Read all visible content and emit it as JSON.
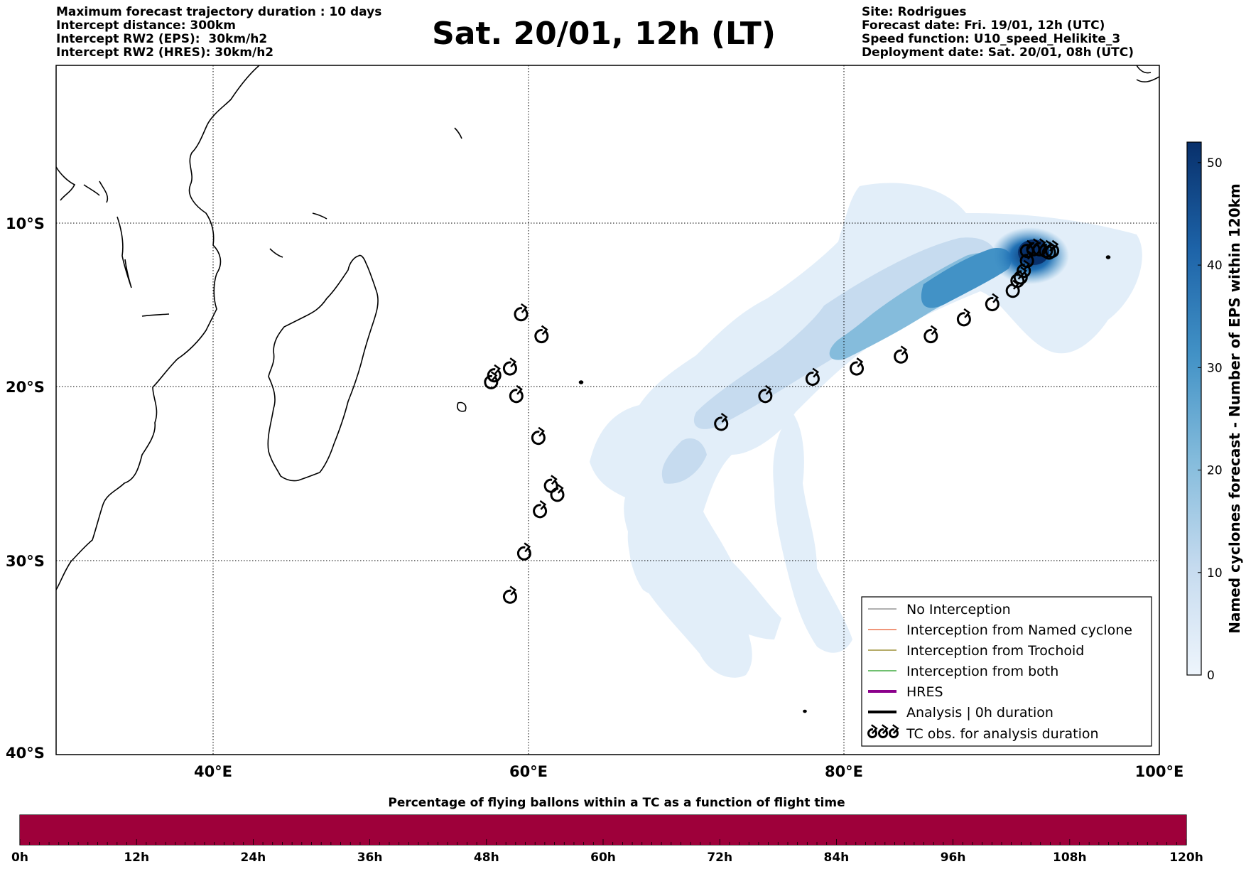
{
  "header": {
    "left_lines": [
      "Maximum forecast trajectory duration : 10 days",
      "Intercept distance: 300km",
      "Intercept RW2 (EPS):  30km/h2",
      "Intercept RW2 (HRES): 30km/h2"
    ],
    "title": "Sat. 20/01, 12h (LT)",
    "right_lines": [
      "Site: Rodrigues",
      "Forecast date: Fri. 19/01, 12h (UTC)",
      "Speed function: U10_speed_Helikite_3",
      "Deployment date: Sat. 20/01, 08h (UTC)"
    ]
  },
  "map": {
    "lon_range": [
      30,
      100
    ],
    "lat_range": [
      -40,
      -1
    ],
    "lon_labels": [
      {
        "lon": 40,
        "label": "40°E"
      },
      {
        "lon": 60,
        "label": "60°E"
      },
      {
        "lon": 80,
        "label": "80°E"
      },
      {
        "lon": 100,
        "label": "100°E"
      }
    ],
    "lat_labels": [
      {
        "lat": -10,
        "label": "10°S"
      },
      {
        "lat": -20,
        "label": "20°S"
      },
      {
        "lat": -30,
        "label": "30°S"
      },
      {
        "lat": -40,
        "label": "40°S"
      }
    ],
    "tc_obs_west": [
      [
        59.5,
        -16.2
      ],
      [
        60.8,
        -17.5
      ],
      [
        57.8,
        -19.8
      ],
      [
        57.6,
        -20.2
      ],
      [
        58.8,
        -19.4
      ],
      [
        59.2,
        -21.0
      ],
      [
        60.6,
        -23.4
      ],
      [
        61.4,
        -26.1
      ],
      [
        61.8,
        -26.6
      ],
      [
        60.7,
        -27.5
      ],
      [
        59.7,
        -29.8
      ],
      [
        58.8,
        -32.1
      ]
    ],
    "tc_obs_east": [
      [
        72.2,
        -22.6
      ],
      [
        75.0,
        -21.0
      ],
      [
        78.0,
        -20.0
      ],
      [
        80.8,
        -19.4
      ],
      [
        83.6,
        -18.7
      ],
      [
        85.5,
        -17.5
      ],
      [
        87.6,
        -16.5
      ],
      [
        89.4,
        -15.6
      ],
      [
        90.7,
        -14.8
      ],
      [
        91.0,
        -14.2
      ],
      [
        91.2,
        -14.0
      ],
      [
        91.4,
        -13.6
      ],
      [
        91.6,
        -13.0
      ],
      [
        91.6,
        -12.4
      ],
      [
        92.0,
        -12.3
      ],
      [
        92.4,
        -12.3
      ],
      [
        92.8,
        -12.4
      ],
      [
        93.0,
        -12.5
      ],
      [
        93.2,
        -12.4
      ]
    ]
  },
  "colorbar_vertical": {
    "label": "Named cyclones forecast - Number of EPS within 120km",
    "min": 0,
    "max": 52,
    "ticks": [
      0,
      10,
      20,
      30,
      40,
      50
    ],
    "color_low": "#e8f1fa",
    "color_high": "#08306b"
  },
  "legend": {
    "items": [
      {
        "label": "No Interception",
        "color": "#808080",
        "style": "thin"
      },
      {
        "label": "Interception from Named cyclone",
        "color": "#e8572a",
        "style": "thin"
      },
      {
        "label": "Interception from Trochoid",
        "color": "#8a7a10",
        "style": "thin"
      },
      {
        "label": "Interception from both",
        "color": "#1a9a1a",
        "style": "thin"
      },
      {
        "label": "HRES",
        "color": "#8b008b",
        "style": "thick"
      },
      {
        "label": "Analysis | 0h duration",
        "color": "#000000",
        "style": "thick"
      },
      {
        "label": "TC obs. for analysis duration",
        "color": "#000000",
        "style": "symbol"
      }
    ]
  },
  "bottom_bar": {
    "title": "Percentage of flying ballons within a TC as a function of flight time",
    "color": "#9e003a",
    "percentage": 100,
    "tick_labels": [
      "0h",
      "12h",
      "24h",
      "36h",
      "48h",
      "60h",
      "72h",
      "84h",
      "96h",
      "108h",
      "120h"
    ]
  }
}
